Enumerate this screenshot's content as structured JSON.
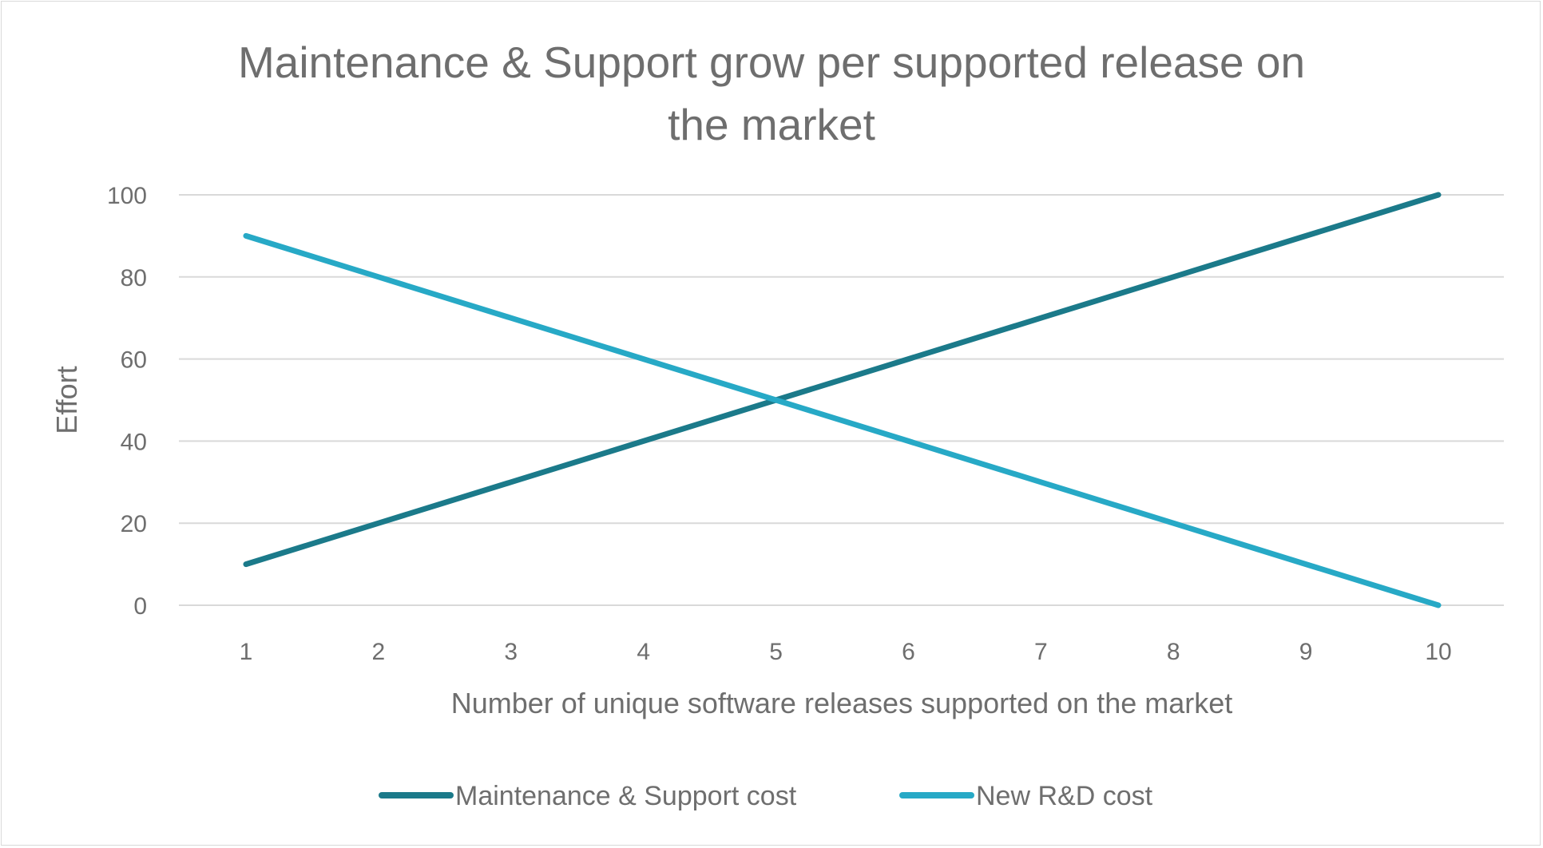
{
  "chart_data": {
    "type": "line",
    "title": [
      "Maintenance & Support grow per supported release on",
      "the market"
    ],
    "xlabel": "Number of unique software releases supported on the market",
    "ylabel": "Effort",
    "categories": [
      "1",
      "2",
      "3",
      "4",
      "5",
      "6",
      "7",
      "8",
      "9",
      "10"
    ],
    "yticks": [
      "0",
      "20",
      "40",
      "60",
      "80",
      "100"
    ],
    "ylim": [
      0,
      100
    ],
    "grid": true,
    "legend": "bottom",
    "series": [
      {
        "name": "Maintenance & Support cost",
        "color": "#1B7A8A",
        "values": [
          10,
          20,
          30,
          40,
          50,
          60,
          70,
          80,
          90,
          100
        ]
      },
      {
        "name": "New R&D cost",
        "color": "#27A9C6",
        "values": [
          90,
          80,
          70,
          60,
          50,
          40,
          30,
          20,
          10,
          0
        ]
      }
    ]
  }
}
